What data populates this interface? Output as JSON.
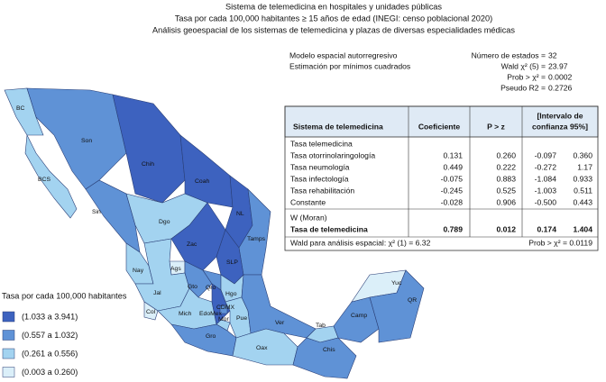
{
  "title": [
    "Sistema de telemedicina en hospitales y unidades públicas",
    "Tasa por cada 100,000 habitantes ≥ 15 años de edad (INEGI: censo poblacional 2020)",
    "Análisis geoespacial de los sistemas de telemedicina y plazas de diversas especialidades médicas"
  ],
  "model": {
    "name": [
      "Modelo espacial autorregresivo",
      "Estimación por mínimos cuadrados"
    ],
    "stats": [
      {
        "label": "Número de estados =",
        "value": "32"
      },
      {
        "label": "Wald χ² (5) =",
        "value": "23.97"
      },
      {
        "label": "Prob > χ² =",
        "value": "0.0002"
      },
      {
        "label": "Pseudo R2 =",
        "value": "0.2726"
      }
    ]
  },
  "table": {
    "header": [
      "Sistema de telemedicina",
      "Coeficiente",
      "P > z",
      [
        "[Intervalo de",
        "confianza 95%]"
      ]
    ],
    "rows": [
      [
        "Tasa telemedicina",
        null,
        null,
        null,
        null
      ],
      [
        "Tasa otorrinolaringología",
        "0.131",
        "0.260",
        "-0.097",
        "0.360"
      ],
      [
        "Tasa neumología",
        "0.449",
        "0.222",
        "-0.272",
        "1.17"
      ],
      [
        "Tasa infectología",
        "-0.075",
        "0.883",
        "-1.084",
        "0.933"
      ],
      [
        "Tasa rehabilitación",
        "-0.245",
        "0.525",
        "-1.003",
        "0.511"
      ],
      [
        "Constante",
        "-0.028",
        "0.906",
        "-0.500",
        "0.443"
      ],
      [
        "W (Moran)",
        null,
        null,
        null,
        null
      ],
      [
        "Tasa de telemedicina",
        "0.789",
        "0.012",
        "0.174",
        "1.404"
      ]
    ],
    "footer": [
      "Wald para análisis espacial: χ² (1) = 6.32",
      "Prob > χ² = 0.0119"
    ]
  },
  "legend": {
    "title": "Tasa por cada 100,000 habitantes",
    "items": [
      {
        "label": "(1.033 a 3.941)",
        "color": "#3d62bf"
      },
      {
        "label": "(0.557 a 1.032)",
        "color": "#5f92d6"
      },
      {
        "label": "(0.261 a 0.556)",
        "color": "#a3d3f0"
      },
      {
        "label": "(0.003 a 0.260)",
        "color": "#dbeff9"
      }
    ]
  },
  "states": [
    {
      "name": "BC",
      "class": 2
    },
    {
      "name": "Son",
      "class": 1
    },
    {
      "name": "Chih",
      "class": 0
    },
    {
      "name": "Coah",
      "class": 0
    },
    {
      "name": "NL",
      "class": 0
    },
    {
      "name": "Tamps",
      "class": 1
    },
    {
      "name": "BCS",
      "class": 2
    },
    {
      "name": "Sin",
      "class": 1
    },
    {
      "name": "Dgo",
      "class": 2
    },
    {
      "name": "Zac",
      "class": 0
    },
    {
      "name": "SLP",
      "class": 0
    },
    {
      "name": "Nay",
      "class": 2
    },
    {
      "name": "Ags",
      "class": 3
    },
    {
      "name": "Jal",
      "class": 2
    },
    {
      "name": "Gto",
      "class": 1
    },
    {
      "name": "Qro",
      "class": 1
    },
    {
      "name": "Hgo",
      "class": 2
    },
    {
      "name": "Col",
      "class": 3
    },
    {
      "name": "Mich",
      "class": 2
    },
    {
      "name": "EdoMex",
      "class": 0
    },
    {
      "name": "CDMX",
      "class": 1
    },
    {
      "name": "Mor",
      "class": 2
    },
    {
      "name": "Pue",
      "class": 2
    },
    {
      "name": "Ver",
      "class": 1
    },
    {
      "name": "Gro",
      "class": 1
    },
    {
      "name": "Oax",
      "class": 2
    },
    {
      "name": "Tab",
      "class": 2
    },
    {
      "name": "Chis",
      "class": 1
    },
    {
      "name": "Camp",
      "class": 1
    },
    {
      "name": "Yuc",
      "class": 3
    },
    {
      "name": "QR",
      "class": 1
    }
  ]
}
